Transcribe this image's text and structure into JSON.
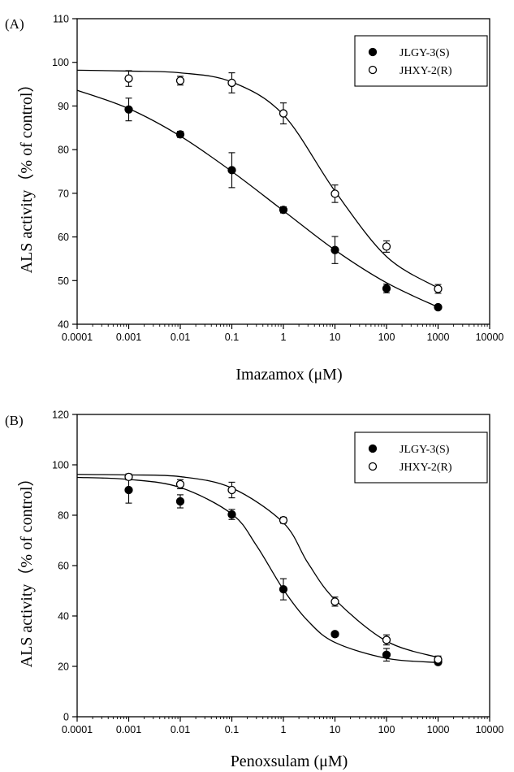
{
  "chart_data": [
    {
      "type": "scatter",
      "panel_label": "(A)",
      "xlabel": "Imazamox (μM)",
      "ylabel": "ALS activity（% of control）",
      "xscale": "log",
      "xlim": [
        0.0001,
        10000
      ],
      "ylim": [
        40,
        110
      ],
      "xticks": [
        "0.0001",
        "0.001",
        "0.01",
        "0.1",
        "1",
        "10",
        "100",
        "1000",
        "10000"
      ],
      "yticks": [
        "40",
        "50",
        "60",
        "70",
        "80",
        "90",
        "100",
        "110"
      ],
      "legend_position": "top-right",
      "grid": false,
      "series": [
        {
          "name": "JLGY-3(S)",
          "marker": "filled-circle",
          "color": "#000000",
          "x": [
            0.001,
            0.01,
            0.1,
            1,
            10,
            100,
            1000
          ],
          "y": [
            89.2,
            83.5,
            75.3,
            66.2,
            57.0,
            48.2,
            43.9
          ],
          "error": [
            2.6,
            0.7,
            4.0,
            0.7,
            3.1,
            1.0,
            0.5
          ],
          "fit": [
            [
              0.0001,
              93.6
            ],
            [
              0.001,
              89.4
            ],
            [
              0.01,
              83.1
            ],
            [
              0.1,
              75.0
            ],
            [
              1,
              66.0
            ],
            [
              10,
              57.0
            ],
            [
              100,
              49.5
            ],
            [
              1000,
              43.9
            ]
          ]
        },
        {
          "name": "JHXY-2(R)",
          "marker": "open-circle",
          "color": "#000000",
          "x": [
            0.001,
            0.01,
            0.1,
            1,
            10,
            100,
            1000
          ],
          "y": [
            96.3,
            95.8,
            95.3,
            88.3,
            69.9,
            57.8,
            48.1
          ],
          "error": [
            1.8,
            1.0,
            2.3,
            2.4,
            2.0,
            1.3,
            1.0
          ],
          "fit": [
            [
              0.0001,
              98.2
            ],
            [
              0.001,
              98.0
            ],
            [
              0.01,
              97.6
            ],
            [
              0.1,
              95.5
            ],
            [
              1,
              88.0
            ],
            [
              10,
              70.5
            ],
            [
              100,
              55.5
            ],
            [
              1000,
              48.3
            ]
          ]
        }
      ]
    },
    {
      "type": "scatter",
      "panel_label": "(B)",
      "xlabel": "Penoxsulam (μM)",
      "ylabel": "ALS activity（% of control）",
      "xscale": "log",
      "xlim": [
        0.0001,
        10000
      ],
      "ylim": [
        0,
        120
      ],
      "xticks": [
        "0.0001",
        "0.001",
        "0.01",
        "0.1",
        "1",
        "10",
        "100",
        "1000",
        "10000"
      ],
      "yticks": [
        "0",
        "20",
        "40",
        "60",
        "80",
        "100",
        "120"
      ],
      "legend_position": "top-right",
      "grid": false,
      "series": [
        {
          "name": "JLGY-3(S)",
          "marker": "filled-circle",
          "color": "#000000",
          "x": [
            0.001,
            0.01,
            0.1,
            1,
            10,
            100,
            1000
          ],
          "y": [
            90.0,
            85.5,
            80.3,
            50.6,
            32.8,
            24.6,
            21.7
          ],
          "error": [
            5.2,
            2.6,
            2.0,
            4.2,
            1.0,
            2.5,
            1.0
          ],
          "fit": [
            [
              0.0001,
              95.0
            ],
            [
              0.001,
              94.2
            ],
            [
              0.01,
              91.0
            ],
            [
              0.1,
              80.5
            ],
            [
              0.3,
              68.0
            ],
            [
              1,
              50.5
            ],
            [
              3,
              38.0
            ],
            [
              10,
              29.5
            ],
            [
              100,
              23.2
            ],
            [
              1000,
              21.5
            ]
          ]
        },
        {
          "name": "JHXY-2(R)",
          "marker": "open-circle",
          "color": "#000000",
          "x": [
            0.001,
            0.01,
            0.1,
            1,
            10,
            100,
            1000
          ],
          "y": [
            95.2,
            92.3,
            90.0,
            78.0,
            45.7,
            30.5,
            22.7
          ],
          "error": [
            1.2,
            1.8,
            3.1,
            1.2,
            1.8,
            2.0,
            1.4
          ],
          "fit": [
            [
              0.0001,
              96.2
            ],
            [
              0.001,
              96.0
            ],
            [
              0.01,
              95.3
            ],
            [
              0.1,
              90.8
            ],
            [
              1,
              77.0
            ],
            [
              3,
              61.0
            ],
            [
              10,
              46.5
            ],
            [
              100,
              30.0
            ],
            [
              1000,
              23.5
            ]
          ]
        }
      ]
    }
  ]
}
